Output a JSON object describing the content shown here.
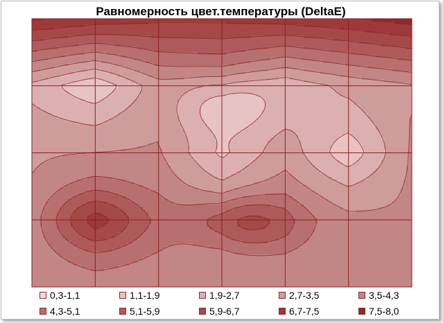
{
  "chart_data": {
    "type": "heatmap",
    "title": "Равномерность цвет.температуры (DeltaE)",
    "xlabel": "",
    "ylabel": "",
    "grid": true,
    "grid_cols": 6,
    "grid_rows": 4,
    "x": [
      0,
      1,
      2,
      3,
      4,
      5,
      6
    ],
    "y": [
      0,
      1,
      2,
      3,
      4
    ],
    "z": [
      [
        7.6,
        7.2,
        6.9,
        6.9,
        7.1,
        7.4,
        7.9
      ],
      [
        2.5,
        1.6,
        3.3,
        3.6,
        2.2,
        2.9,
        3.4
      ],
      [
        3.4,
        3.5,
        3.6,
        1.8,
        3.3,
        1.9,
        3.7
      ],
      [
        3.6,
        5.1,
        4.4,
        3.4,
        4.2,
        3.7,
        3.6
      ],
      [
        3.8,
        3.9,
        3.8,
        3.7,
        3.6,
        3.6,
        3.6
      ]
    ],
    "hotspots": [
      {
        "x": 1.05,
        "y": 3.1,
        "value": 6.2
      },
      {
        "x": 0.95,
        "y": 2.85,
        "value": 5.6
      },
      {
        "x": 3.55,
        "y": 3.05,
        "value": 5.5
      },
      {
        "x": 3.0,
        "y": 3.0,
        "value": 4.4
      },
      {
        "x": 5.0,
        "y": 2.0,
        "value": 1.4
      },
      {
        "x": 1.0,
        "y": 0.95,
        "value": 1.5
      },
      {
        "x": 3.05,
        "y": 1.3,
        "value": 1.4
      }
    ],
    "legend_position": "bottom",
    "legend": [
      {
        "label": "0,3-1,1",
        "min": 0.3,
        "max": 1.1,
        "color": "#f4dada"
      },
      {
        "label": "1,1-1,9",
        "min": 1.1,
        "max": 1.9,
        "color": "#e8c3c3"
      },
      {
        "label": "1,9-2,7",
        "min": 1.9,
        "max": 2.7,
        "color": "#dcb0b0"
      },
      {
        "label": "2,7-3,5",
        "min": 2.7,
        "max": 3.5,
        "color": "#cf9c9c"
      },
      {
        "label": "3,5-4,3",
        "min": 3.5,
        "max": 4.3,
        "color": "#c38686"
      },
      {
        "label": "4,3-5,1",
        "min": 4.3,
        "max": 5.1,
        "color": "#b86f6f"
      },
      {
        "label": "5,1-5,9",
        "min": 5.1,
        "max": 5.9,
        "color": "#ae5a5a"
      },
      {
        "label": "5,9-6,7",
        "min": 5.9,
        "max": 6.7,
        "color": "#a54848"
      },
      {
        "label": "6,7-7,5",
        "min": 6.7,
        "max": 7.5,
        "color": "#9c3a3a"
      },
      {
        "label": "7,5-8,0",
        "min": 7.5,
        "max": 8.0,
        "color": "#8e2c2c"
      }
    ]
  }
}
